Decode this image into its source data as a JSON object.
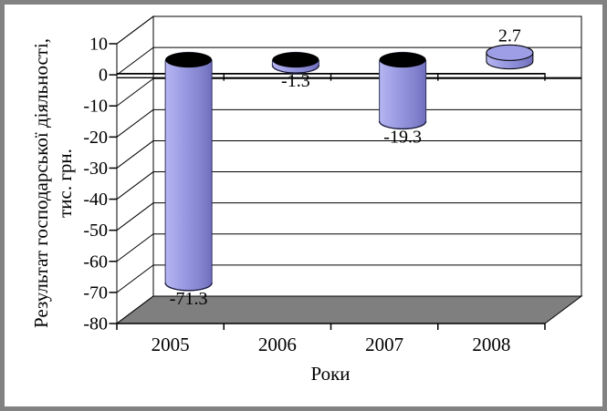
{
  "window": {
    "background": "#ffffff",
    "frame_color": "#828282"
  },
  "chart_data": {
    "type": "bar",
    "subtype": "3d-cylinder",
    "title": "",
    "categories": [
      "2005",
      "2006",
      "2007",
      "2008"
    ],
    "values": [
      -71.3,
      -1.3,
      -19.3,
      2.7
    ],
    "data_labels": [
      "-71.3",
      "-1.3",
      "-19.3",
      "2.7"
    ],
    "xlabel": "Роки",
    "ylabel": "Результат господарської діяльності, тис. грн.",
    "ylabel_lines": [
      "Результат господарської діяльності,",
      "тис. грн."
    ],
    "ylim": [
      -80,
      10
    ],
    "yticks": [
      10,
      0,
      -10,
      -20,
      -30,
      -40,
      -50,
      -60,
      -70,
      -80
    ],
    "grid": true,
    "legend": false,
    "colors": {
      "series_body_stops": [
        "#b6b6f2",
        "#a4a4e9",
        "#9090da",
        "#8080cc",
        "#6e6ebd"
      ],
      "series_rim": "#9a9ae2",
      "positive_cap": "#9e9ee6",
      "negative_cap": "#000000",
      "body_stroke_negative": "#33335e",
      "body_stroke_positive": "#000000",
      "floor": "#7f7f7f",
      "wall": "#ffffff",
      "axis": "#000000"
    }
  }
}
